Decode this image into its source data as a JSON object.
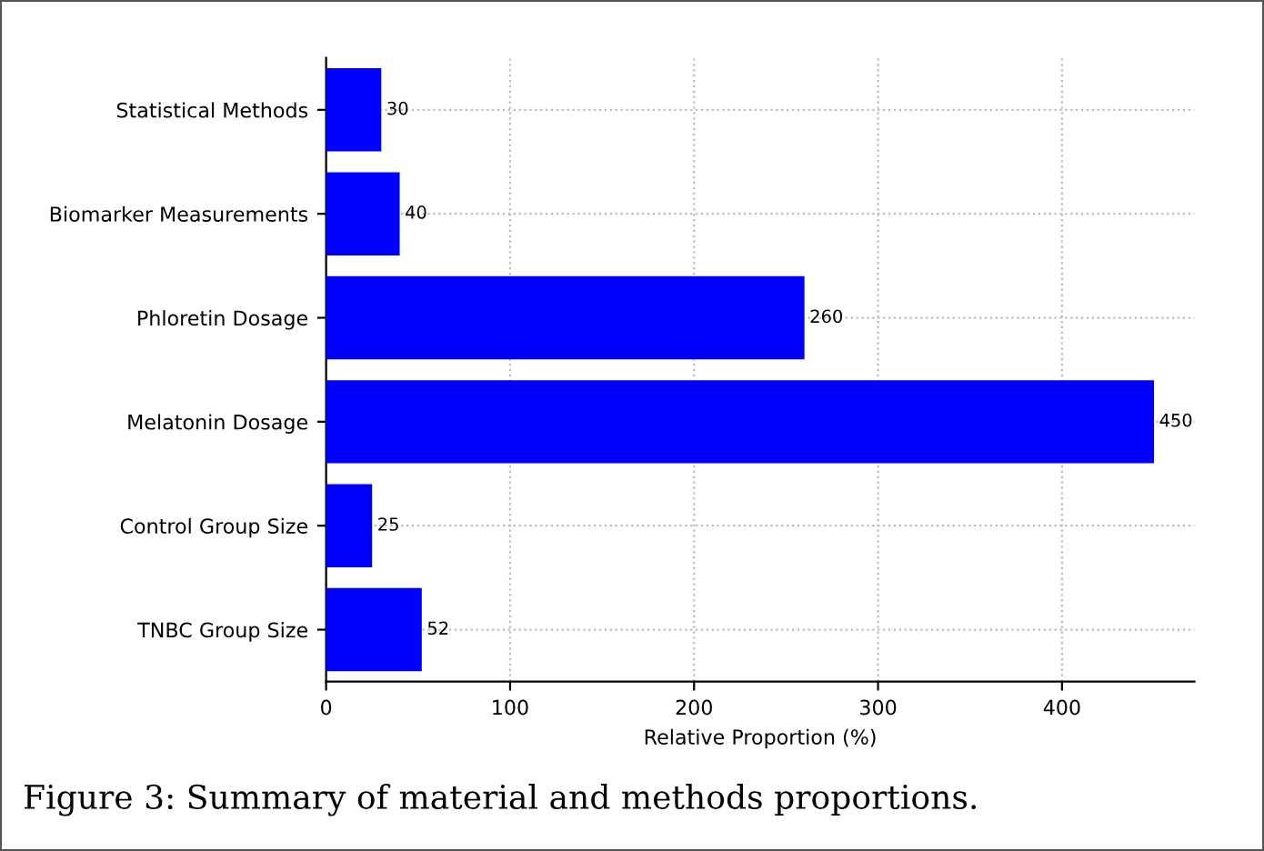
{
  "chart_data": {
    "type": "bar",
    "orientation": "horizontal",
    "xlabel": "Relative Proportion (%)",
    "categories": [
      "Statistical Methods",
      "Biomarker Measurements",
      "Phloretin Dosage",
      "Melatonin Dosage",
      "Control Group Size",
      "TNBC Group Size"
    ],
    "values": [
      30,
      40,
      260,
      450,
      25,
      52
    ],
    "color": "#0000ff",
    "data_labels": true,
    "xlim": [
      0,
      472
    ],
    "xticks": [
      0,
      100,
      200,
      300,
      400
    ],
    "grid": true,
    "annotations": [
      "Figure 3: Summary of material and methods proportions."
    ]
  }
}
